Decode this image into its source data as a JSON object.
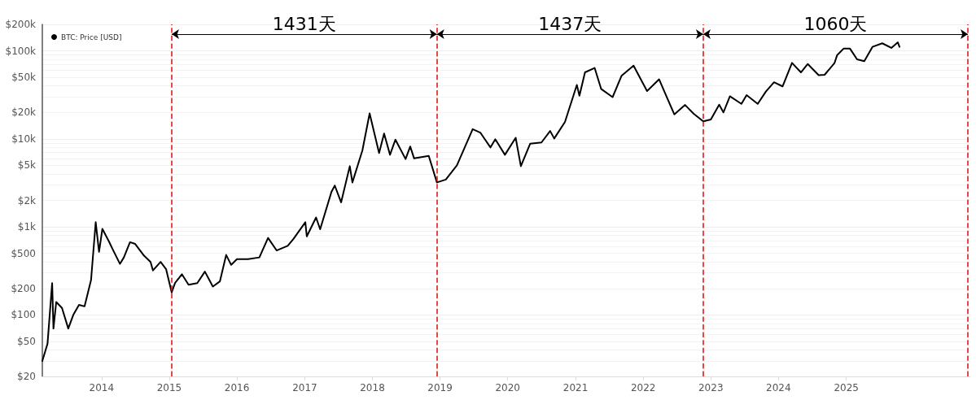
{
  "chart_data": {
    "type": "line",
    "log": "y",
    "grid": "y",
    "legend": "top left",
    "marker": "none",
    "line_style": "solid",
    "xlim": [
      "2013-02-15",
      "2026-11-01"
    ],
    "xticks": [
      {
        "value": "2014",
        "label": "2014"
      },
      {
        "value": "2015",
        "label": "2015"
      },
      {
        "value": "2016",
        "label": "2016"
      },
      {
        "value": "2017",
        "label": "2017"
      },
      {
        "value": "2018",
        "label": "2018"
      },
      {
        "value": "2019",
        "label": "2019"
      },
      {
        "value": "2020",
        "label": "2020"
      },
      {
        "value": "2021",
        "label": "2021"
      },
      {
        "value": "2022",
        "label": "2022"
      },
      {
        "value": "2023",
        "label": "2023"
      },
      {
        "value": "2024",
        "label": "2024"
      },
      {
        "value": "2025",
        "label": "2025"
      }
    ],
    "ylim": [
      20,
      200000
    ],
    "yticks": [
      {
        "value": 20,
        "label": "$20"
      },
      {
        "value": 50,
        "label": "$50"
      },
      {
        "value": 100,
        "label": "$100"
      },
      {
        "value": 200,
        "label": "$200"
      },
      {
        "value": 500,
        "label": "$500"
      },
      {
        "value": 1000,
        "label": "$1k"
      },
      {
        "value": 2000,
        "label": "$2k"
      },
      {
        "value": 5000,
        "label": "$5k"
      },
      {
        "value": 10000,
        "label": "$10k"
      },
      {
        "value": 20000,
        "label": "$20k"
      },
      {
        "value": 50000,
        "label": "$50k"
      },
      {
        "value": 100000,
        "label": "$100k"
      },
      {
        "value": 200000,
        "label": "$200k"
      }
    ],
    "x": [
      "2013-02-15",
      "2013-03-15",
      "2013-04-09",
      "2013-04-16",
      "2013-05-01",
      "2013-06-01",
      "2013-07-05",
      "2013-08-01",
      "2013-09-01",
      "2013-10-01",
      "2013-11-05",
      "2013-11-30",
      "2013-12-18",
      "2014-01-05",
      "2014-02-10",
      "2014-03-01",
      "2014-04-10",
      "2014-05-01",
      "2014-06-03",
      "2014-07-01",
      "2014-08-18",
      "2014-09-22",
      "2014-10-05",
      "2014-11-15",
      "2014-12-15",
      "2015-01-14",
      "2015-02-01",
      "2015-03-10",
      "2015-04-15",
      "2015-06-01",
      "2015-07-12",
      "2015-08-24",
      "2015-10-01",
      "2015-11-04",
      "2015-12-01",
      "2016-01-01",
      "2016-03-01",
      "2016-05-01",
      "2016-06-17",
      "2016-08-02",
      "2016-10-01",
      "2016-11-01",
      "2017-01-04",
      "2017-01-12",
      "2017-03-03",
      "2017-03-25",
      "2017-05-25",
      "2017-06-12",
      "2017-07-16",
      "2017-09-01",
      "2017-09-15",
      "2017-11-08",
      "2017-12-17",
      "2018-02-06",
      "2018-03-05",
      "2018-04-06",
      "2018-05-05",
      "2018-06-29",
      "2018-07-24",
      "2018-08-14",
      "2018-11-01",
      "2018-12-15",
      "2019-02-01",
      "2019-04-02",
      "2019-06-26",
      "2019-08-06",
      "2019-09-30",
      "2019-10-26",
      "2019-12-17",
      "2020-02-13",
      "2020-03-12",
      "2020-05-01",
      "2020-07-01",
      "2020-08-17",
      "2020-09-08",
      "2020-11-05",
      "2021-01-08",
      "2021-01-22",
      "2021-02-21",
      "2021-04-14",
      "2021-05-19",
      "2021-07-20",
      "2021-09-06",
      "2021-11-10",
      "2022-01-22",
      "2022-03-28",
      "2022-05-11",
      "2022-06-18",
      "2022-08-15",
      "2022-10-01",
      "2022-11-21",
      "2023-01-01",
      "2023-02-15",
      "2023-03-10",
      "2023-04-14",
      "2023-06-15",
      "2023-07-13",
      "2023-09-11",
      "2023-10-25",
      "2023-12-08",
      "2024-01-23",
      "2024-03-14",
      "2024-05-01",
      "2024-06-07",
      "2024-08-05",
      "2024-09-06",
      "2024-10-29",
      "2024-11-12",
      "2024-12-17",
      "2025-01-21",
      "2025-02-28",
      "2025-04-08",
      "2025-05-22",
      "2025-07-14",
      "2025-09-01",
      "2025-10-06",
      "2025-10-15"
    ],
    "series": [
      {
        "name": "BTC: Price [USD]",
        "color": "#000000",
        "values": [
          30,
          47,
          230,
          70,
          140,
          120,
          70,
          100,
          130,
          125,
          250,
          1130,
          520,
          950,
          680,
          560,
          380,
          450,
          670,
          640,
          470,
          400,
          320,
          400,
          330,
          180,
          230,
          290,
          220,
          230,
          310,
          210,
          240,
          480,
          370,
          430,
          430,
          450,
          750,
          540,
          610,
          730,
          1130,
          780,
          1280,
          940,
          2500,
          2950,
          1900,
          4900,
          3200,
          7400,
          19500,
          6900,
          11500,
          6600,
          9800,
          5900,
          8200,
          6000,
          6400,
          3200,
          3450,
          5000,
          12900,
          11800,
          8000,
          9900,
          6600,
          10300,
          4900,
          8800,
          9100,
          12300,
          10100,
          15600,
          41000,
          31000,
          57000,
          64000,
          37000,
          29800,
          52000,
          68000,
          35000,
          47500,
          29000,
          19000,
          24300,
          19300,
          15800,
          16600,
          24500,
          20000,
          30500,
          25000,
          31400,
          25000,
          34500,
          44000,
          39500,
          73000,
          57000,
          71000,
          53000,
          53500,
          72500,
          89000,
          106000,
          106000,
          80000,
          76300,
          111000,
          122000,
          108000,
          125000,
          111000
        ]
      }
    ],
    "ref_lines": [
      {
        "axis": "x",
        "value": "2015-01-14",
        "color": "#e31a1c",
        "line_style": "dashed"
      },
      {
        "axis": "x",
        "value": "2018-12-15",
        "color": "#e31a1c",
        "line_style": "dashed"
      },
      {
        "axis": "x",
        "value": "2022-11-21",
        "color": "#e31a1c",
        "line_style": "dashed"
      },
      {
        "axis": "x",
        "value": "2026-10-19",
        "color": "#e31a1c",
        "line_style": "dashed"
      }
    ],
    "annotations": [
      "1431天",
      "1437天",
      "1060天"
    ]
  }
}
